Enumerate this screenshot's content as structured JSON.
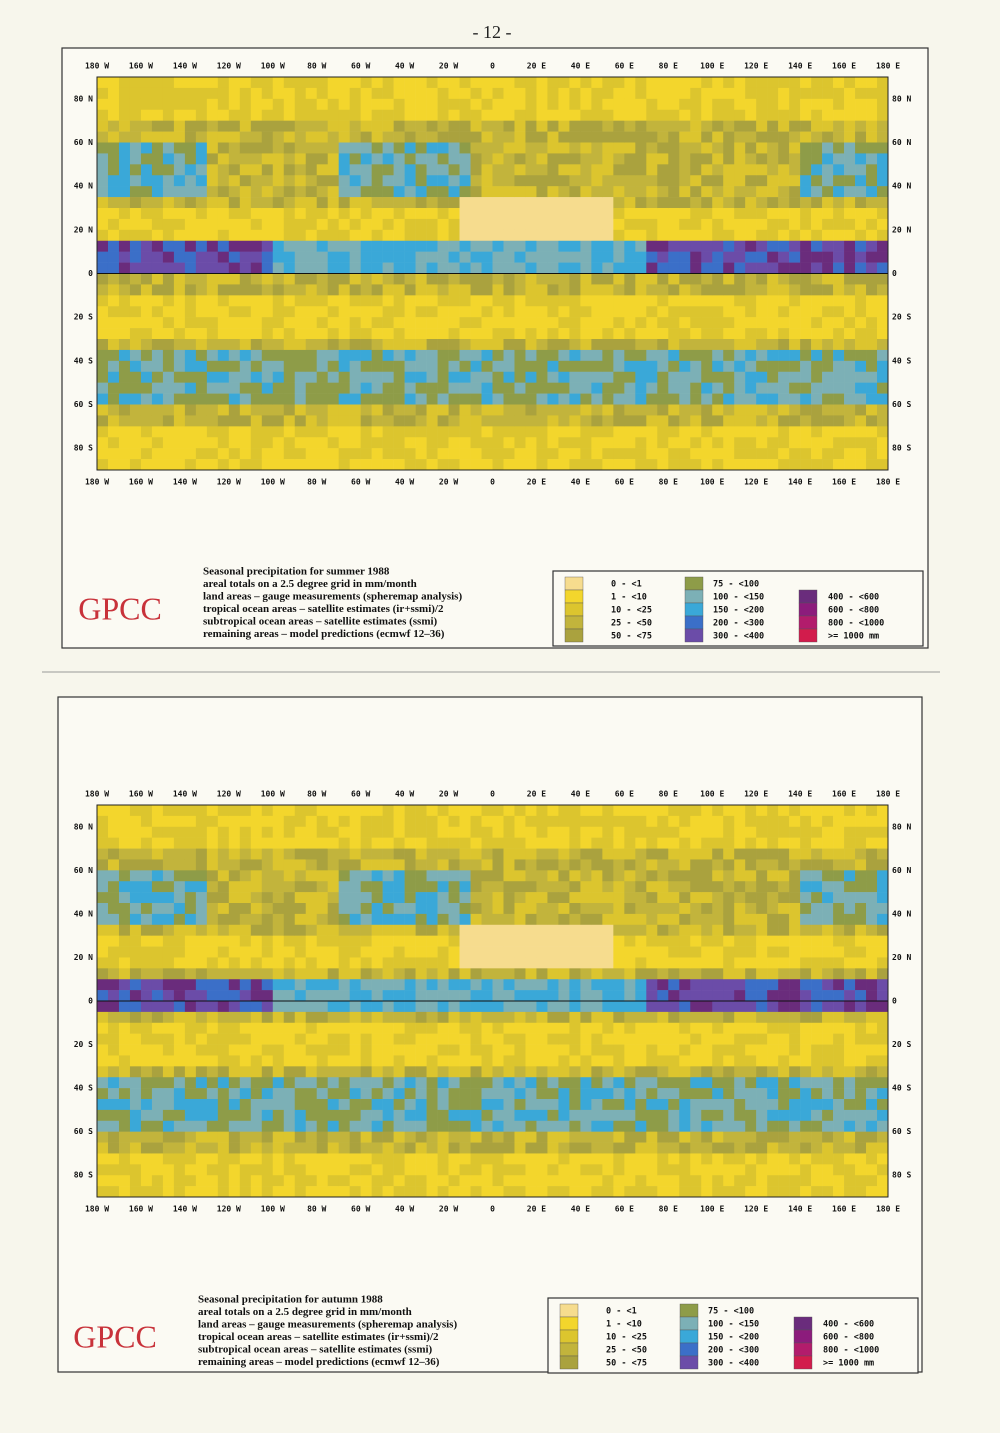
{
  "page_number": "- 12 -",
  "legend_colors": [
    "#f6dc8e",
    "#f3d62c",
    "#dcc52e",
    "#c2b43c",
    "#aaa23e",
    "#8e9c48",
    "#7cb0b6",
    "#3aa8d8",
    "#3b6fc8",
    "#6b4ca8",
    "#6a2c7c",
    "#8c1c7c",
    "#b21c6c",
    "#d21c4c"
  ],
  "maps": [
    {
      "x_labels": [
        "180 W",
        "160 W",
        "140 W",
        "120 W",
        "100 W",
        "80 W",
        "60 W",
        "40 W",
        "20 W",
        "0",
        "20 E",
        "40 E",
        "60 E",
        "80 E",
        "100 E",
        "120 E",
        "140 E",
        "160 E",
        "180 E"
      ],
      "y_labels_left": [
        "80 N",
        "60 N",
        "40 N",
        "20 N",
        "0",
        "20 S",
        "40 S",
        "60 S",
        "80 S"
      ],
      "y_labels_right": [
        "80 N",
        "60 N",
        "40 N",
        "20 N",
        "0",
        "20 S",
        "40 S",
        "60 S",
        "80 S"
      ],
      "caption": [
        "Seasonal precipitation for summer 1988",
        "areal totals on a 2.5 degree grid in mm/month",
        "land areas – gauge measurements (spheremap analysis)",
        "tropical ocean areas – satellite estimates (ir+ssmi)/2",
        "subtropical ocean areas – satellite estimates (ssmi)",
        "remaining areas – model predictions (ecmwf 12–36)"
      ],
      "logo": "GPCC",
      "legend": [
        "0 - <1",
        "1 - <10",
        "10 - <25",
        "25 - <50",
        "50 - <75",
        "75 - <100",
        "100 - <150",
        "150 - <200",
        "200 - <300",
        "300 - <400",
        "400 - <600",
        "600 - <800",
        "800 - <1000",
        ">= 1000 mm"
      ]
    },
    {
      "x_labels": [
        "180 W",
        "160 W",
        "140 W",
        "120 W",
        "100 W",
        "80 W",
        "60 W",
        "40 W",
        "20 W",
        "0",
        "20 E",
        "40 E",
        "60 E",
        "80 E",
        "100 E",
        "120 E",
        "140 E",
        "160 E",
        "180 E"
      ],
      "y_labels_left": [
        "80 N",
        "60 N",
        "40 N",
        "20 N",
        "0",
        "20 S",
        "40 S",
        "60 S",
        "80 S"
      ],
      "y_labels_right": [
        "80 N",
        "60 N",
        "40 N",
        "20 N",
        "0",
        "20 S",
        "40 S",
        "60 S",
        "80 S"
      ],
      "caption": [
        "Seasonal precipitation for autumn 1988",
        "areal totals on a 2.5 degree grid in mm/month",
        "land areas – gauge measurements (spheremap analysis)",
        "tropical ocean areas – satellite estimates (ir+ssmi)/2",
        "subtropical ocean areas – satellite estimates (ssmi)",
        "remaining areas – model predictions (ecmwf 12–36)"
      ],
      "logo": "GPCC",
      "legend": [
        "0 - <1",
        "1 - <10",
        "10 - <25",
        "25 - <50",
        "50 - <75",
        "75 - <100",
        "100 - <150",
        "150 - <200",
        "200 - <300",
        "300 - <400",
        "400 - <600",
        "600 - <800",
        "800 - <1000",
        ">= 1000 mm"
      ]
    }
  ]
}
